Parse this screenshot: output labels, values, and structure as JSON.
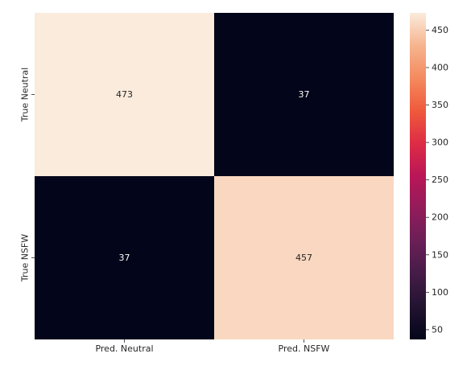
{
  "chart_data": {
    "type": "heatmap",
    "title": "",
    "xlabel": "",
    "ylabel": "",
    "x_categories": [
      "Pred. Neutral",
      "Pred. NSFW"
    ],
    "y_categories": [
      "True Neutral",
      "True NSFW"
    ],
    "values": [
      [
        473,
        37
      ],
      [
        37,
        457
      ]
    ],
    "colorbar": {
      "colormap": "rocket",
      "range": [
        37,
        473
      ],
      "ticks": [
        50,
        100,
        150,
        200,
        250,
        300,
        350,
        400,
        450
      ]
    },
    "colors": {
      "low": "#03051a",
      "high": "#faebdd"
    },
    "annotation_colors": {
      "on_light": "#262626",
      "on_dark": "#ffffff"
    }
  }
}
